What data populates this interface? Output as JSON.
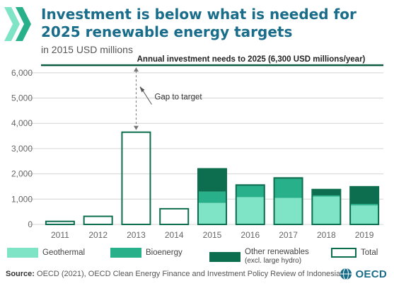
{
  "header": {
    "title_line1": "Investment is below what is needed for",
    "title_line2": "2025 renewable energy targets",
    "subtitle": "in 2015 USD millions"
  },
  "chart_data": {
    "type": "bar",
    "stacked": true,
    "categories": [
      "2011",
      "2012",
      "2013",
      "2014",
      "2015",
      "2016",
      "2017",
      "2018",
      "2019"
    ],
    "series": [
      {
        "name": "Geothermal",
        "color": "#7fe3c6",
        "values": [
          0,
          0,
          0,
          0,
          850,
          1080,
          1050,
          1100,
          750
        ]
      },
      {
        "name": "Bioenergy",
        "color": "#27b08a",
        "values": [
          0,
          0,
          0,
          0,
          450,
          450,
          760,
          50,
          60
        ]
      },
      {
        "name": "Other renewables",
        "name_line2": "(excl. large hydro)",
        "color": "#0c6e4e",
        "values": [
          0,
          0,
          0,
          0,
          900,
          30,
          30,
          230,
          680
        ]
      }
    ],
    "total": {
      "name": "Total",
      "values": [
        120,
        320,
        3650,
        620,
        2200,
        1560,
        1840,
        1380,
        1490
      ]
    },
    "yticks": [
      "0",
      "1,000",
      "2,000",
      "3,000",
      "4,000",
      "5,000",
      "6,000"
    ],
    "ylim": [
      0,
      6500
    ],
    "target": {
      "value": 6300,
      "label": "Annual investment needs to 2025 (6,300 USD millions/year)"
    },
    "gap_label": "Gap to target",
    "gridlines": true
  },
  "footer": {
    "source_label": "Source:",
    "source_text": "OECD (2021), OECD Clean Energy Finance and Investment Policy Review of Indonesia",
    "logo_text": "OECD"
  }
}
